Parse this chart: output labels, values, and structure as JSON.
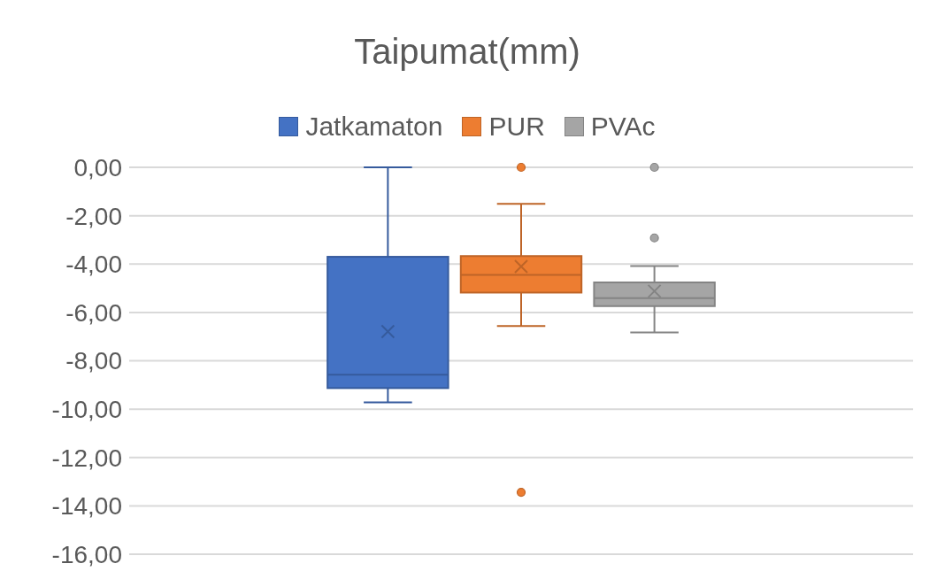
{
  "chart_data": {
    "type": "box",
    "title": "Taipumat(mm)",
    "categories": [
      null
    ],
    "series": [
      {
        "name": "Jatkamaton",
        "color": "#4472c4",
        "boxes": [
          {
            "low": -9.72,
            "q1": -9.13,
            "median": -8.58,
            "q3": -3.7,
            "high": 0,
            "mean": -6.79
          }
        ]
      },
      {
        "name": "PUR",
        "color": "#ed7d31",
        "boxes": [
          {
            "low": -6.56,
            "q1": -5.18,
            "median": -4.45,
            "q3": -3.67,
            "high": -1.51,
            "mean": -4.1,
            "outliers": [
              0,
              -13.44
            ]
          }
        ]
      },
      {
        "name": "PVAc",
        "color": "#a5a5a5",
        "boxes": [
          {
            "low": -6.83,
            "q1": -5.74,
            "median": -5.41,
            "q3": -4.76,
            "high": -4.08,
            "mean": -5.12,
            "outliers": [
              0,
              -2.92
            ]
          }
        ]
      }
    ],
    "ylim": [
      -16,
      0
    ],
    "yticks": [
      {
        "value": 0,
        "label": "0,00"
      },
      {
        "value": -2,
        "label": "-2,00"
      },
      {
        "value": -4,
        "label": "-4,00"
      },
      {
        "value": -6,
        "label": "-6,00"
      },
      {
        "value": -8,
        "label": "-8,00"
      },
      {
        "value": -10,
        "label": "-10,00"
      },
      {
        "value": -12,
        "label": "-12,00"
      },
      {
        "value": -14,
        "label": "-14,00"
      },
      {
        "value": -16,
        "label": "-16,00"
      }
    ],
    "grid": "y",
    "legend": "top",
    "marker": "circle"
  }
}
